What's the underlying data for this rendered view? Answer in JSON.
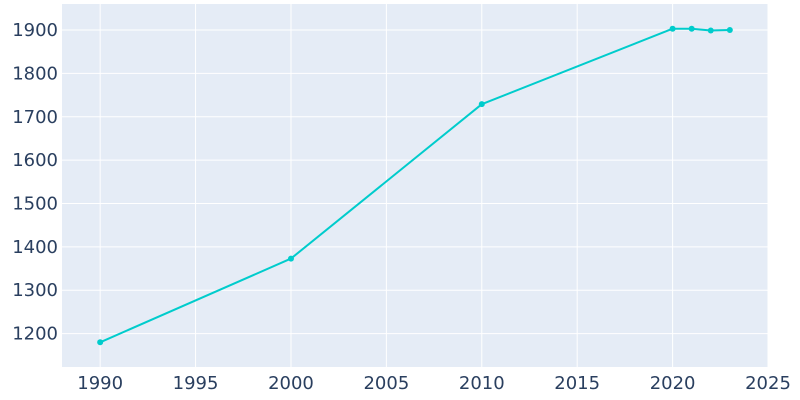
{
  "chart_data": {
    "type": "line",
    "title": "",
    "xlabel": "",
    "ylabel": "",
    "x": [
      1990,
      2000,
      2010,
      2020,
      2021,
      2022,
      2023
    ],
    "series": [
      {
        "values": [
          1180,
          1373,
          1729,
          1903,
          1903,
          1899,
          1900
        ],
        "color": "#00cccc"
      }
    ],
    "xlim": [
      1988,
      2025
    ],
    "ylim": [
      1123,
      1960
    ],
    "x_ticks": [
      1990,
      1995,
      2000,
      2005,
      2010,
      2015,
      2020,
      2025
    ],
    "y_ticks": [
      1200,
      1300,
      1400,
      1500,
      1600,
      1700,
      1800,
      1900
    ],
    "grid": true,
    "legend": "none",
    "plot_background": "#e5ecf6",
    "text_color": "#2a3f5f",
    "gridline_color": "#ffffff"
  }
}
